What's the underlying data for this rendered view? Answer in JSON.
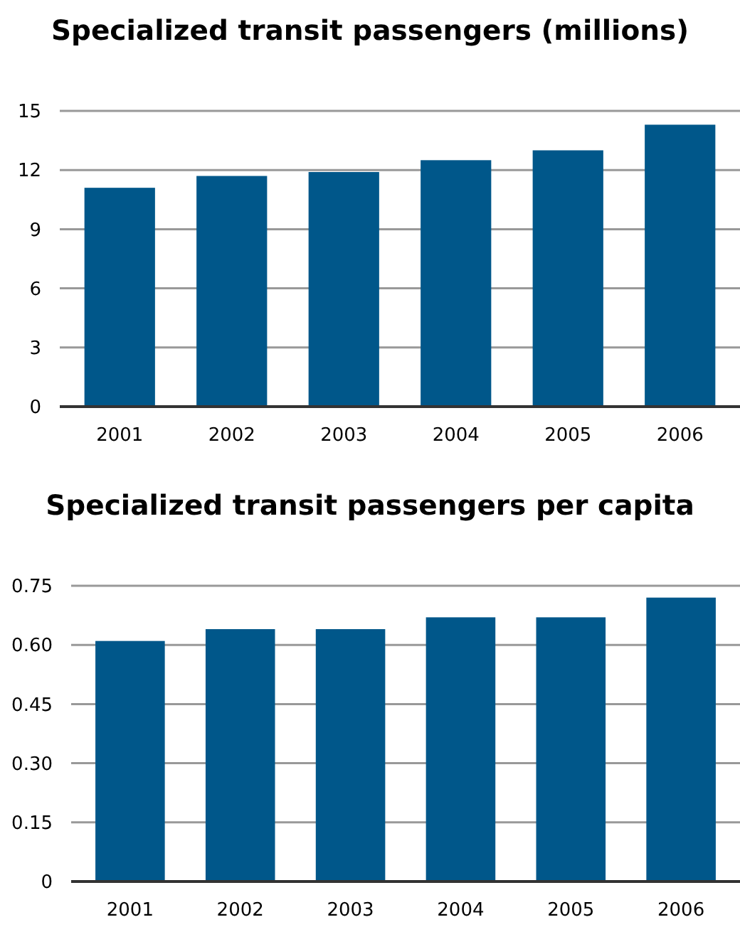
{
  "chart_data": [
    {
      "type": "bar",
      "title": "Specialized transit passengers (millions)",
      "categories": [
        "2001",
        "2002",
        "2003",
        "2004",
        "2005",
        "2006"
      ],
      "values": [
        11.1,
        11.7,
        11.9,
        12.5,
        13.0,
        14.3
      ],
      "color": "#00578a",
      "ylim": [
        0,
        15
      ],
      "yticks": [
        0,
        3,
        6,
        9,
        12,
        15
      ],
      "grid": "y"
    },
    {
      "type": "bar",
      "title": "Specialized transit passengers per capita",
      "categories": [
        "2001",
        "2002",
        "2003",
        "2004",
        "2005",
        "2006"
      ],
      "values": [
        0.61,
        0.64,
        0.64,
        0.67,
        0.67,
        0.72
      ],
      "color": "#00578a",
      "ylim": [
        0,
        0.75
      ],
      "yticks": [
        {
          "value": 0,
          "label": "0"
        },
        {
          "value": 0.15,
          "label": "0.15"
        },
        {
          "value": 0.3,
          "label": "0.30"
        },
        {
          "value": 0.45,
          "label": "0.45"
        },
        {
          "value": 0.6,
          "label": "0.60"
        },
        {
          "value": 0.75,
          "label": "0.75"
        }
      ],
      "grid": "y"
    }
  ]
}
